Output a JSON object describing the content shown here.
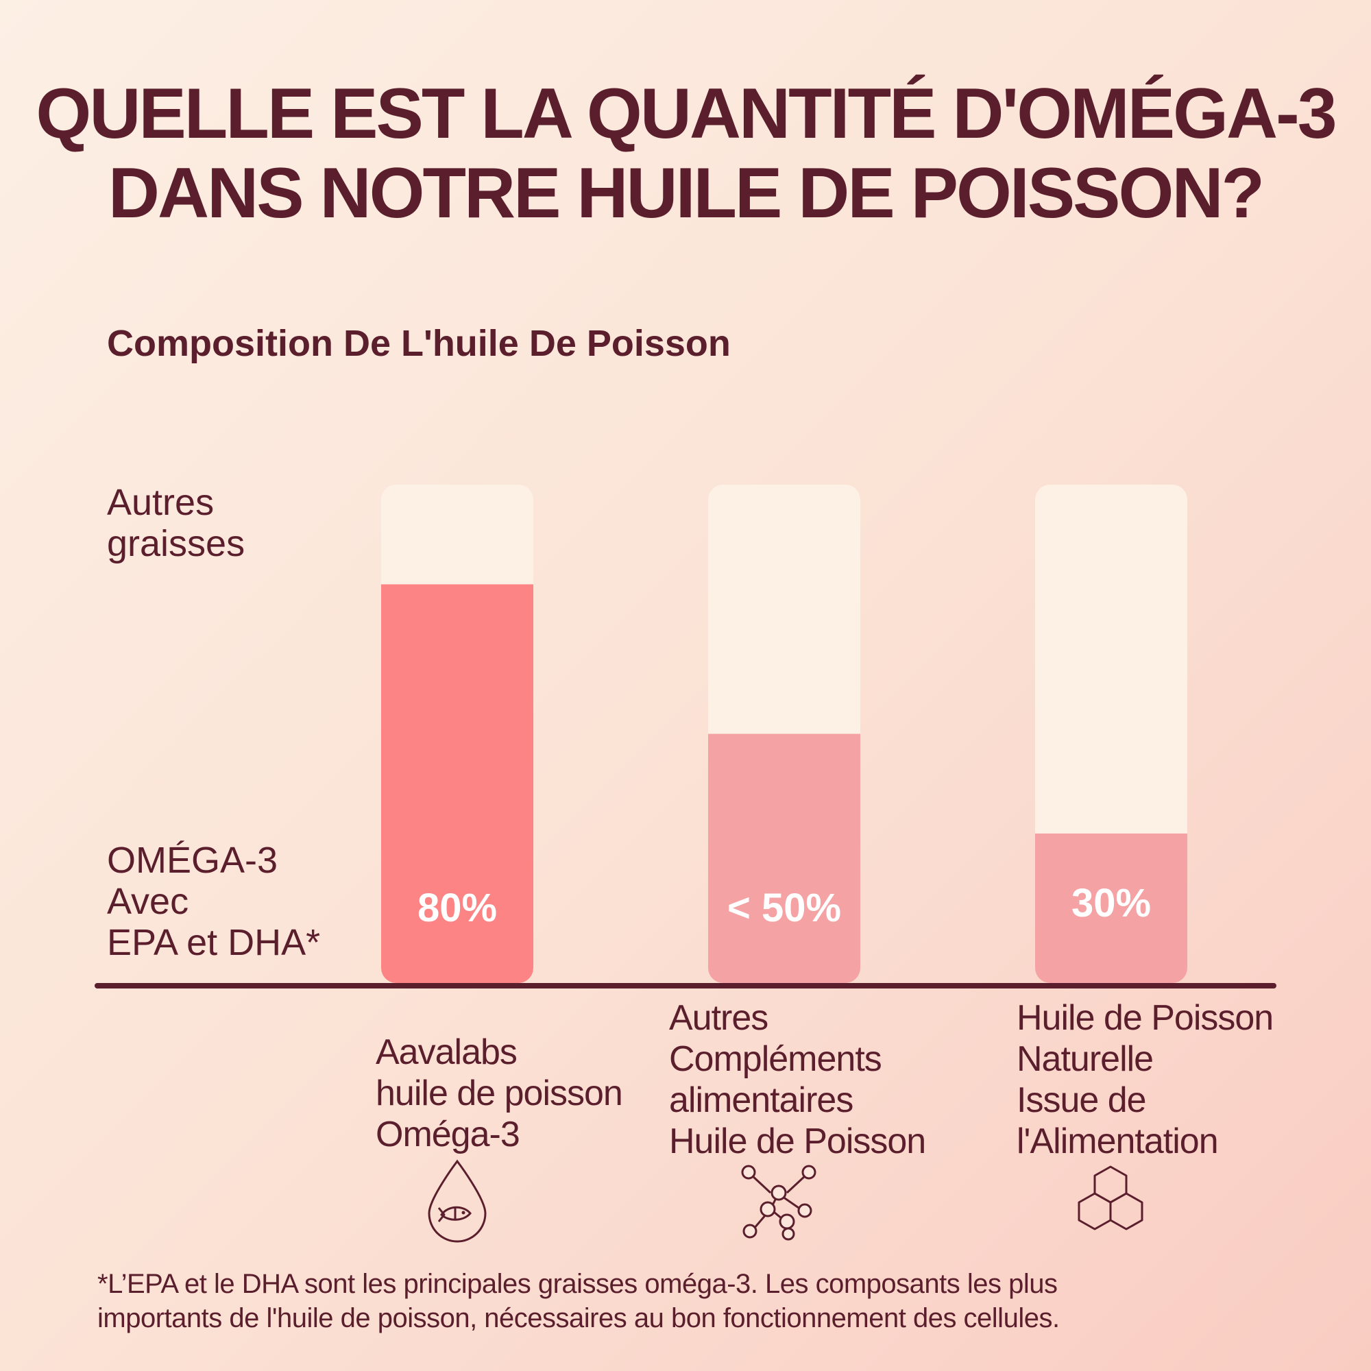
{
  "headline": {
    "line1": "QUELLE EST LA QUANTITÉ D'OMÉGA-3",
    "line2": "DANS NOTRE HUILE DE POISSON?"
  },
  "legend": {
    "other_fats": [
      "Autres",
      "graisses"
    ],
    "omega3": [
      "OMÉGA-3",
      "Avec",
      "EPA et DHA*"
    ]
  },
  "categories": [
    {
      "lines": [
        "Aavalabs",
        "huile de poisson",
        "Oméga-3"
      ],
      "icon": "fish-drop-icon"
    },
    {
      "lines": [
        "Autres",
        "Compléments",
        "alimentaires",
        "Huile de Poisson"
      ],
      "icon": "molecule-icon"
    },
    {
      "lines": [
        "Huile de Poisson",
        "Naturelle",
        "Issue de",
        "l'Alimentation"
      ],
      "icon": "hexagon-cluster-icon"
    }
  ],
  "footnote": {
    "line1": "*L’EPA et le DHA sont les principales graisses oméga-3. Les composants les plus",
    "line2": "importants de l'huile de poisson, nécessaires au bon fonctionnement des cellules."
  },
  "colors": {
    "text": "#5a1e2c",
    "bar_background": "#fdf1e6",
    "bar_highlight": "#fd8485",
    "bar_muted": "#f4a2a4",
    "value_label": "#ffffff"
  },
  "chart_data": {
    "type": "bar",
    "title": "Composition De L'huile De Poisson",
    "categories": [
      "Aavalabs huile de poisson Oméga-3",
      "Autres Compléments alimentaires Huile de Poisson",
      "Huile de Poisson Naturelle Issue de l'Alimentation"
    ],
    "series": [
      {
        "name": "OMÉGA-3 Avec EPA et DHA*",
        "values": [
          80,
          50,
          30
        ]
      },
      {
        "name": "Autres graisses",
        "values": [
          20,
          50,
          70
        ]
      }
    ],
    "value_labels": [
      "80%",
      "< 50%",
      "30%"
    ],
    "stacked": true,
    "ylim": [
      0,
      100
    ],
    "grid": false
  }
}
